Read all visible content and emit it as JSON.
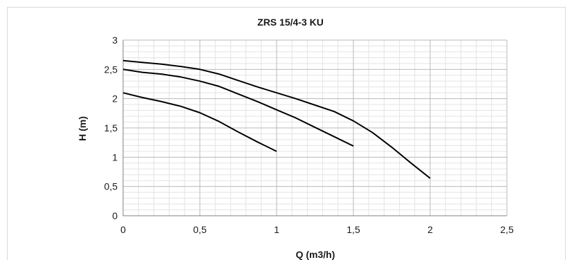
{
  "chart_data": {
    "type": "line",
    "title": "ZRS 15/4-3 KU",
    "xlabel": "Q (m3/h)",
    "ylabel": "H (m)",
    "xlim": [
      0,
      2.5
    ],
    "ylim": [
      0,
      3
    ],
    "xticks": [
      "0",
      "0,5",
      "1",
      "1,5",
      "2",
      "2,5"
    ],
    "yticks": [
      "0",
      "0,5",
      "1",
      "1,5",
      "2",
      "2,5",
      "3"
    ],
    "grid": true,
    "line_color": "#000000",
    "series": [
      {
        "x": [
          0,
          0.125,
          0.25,
          0.375,
          0.5,
          0.625,
          0.75,
          0.875,
          1.0
        ],
        "y": [
          2.1,
          2.02,
          1.95,
          1.87,
          1.76,
          1.61,
          1.43,
          1.26,
          1.1
        ]
      },
      {
        "x": [
          0,
          0.125,
          0.25,
          0.375,
          0.5,
          0.625,
          0.75,
          0.875,
          1.0,
          1.125,
          1.25,
          1.375,
          1.5
        ],
        "y": [
          2.5,
          2.45,
          2.42,
          2.37,
          2.3,
          2.21,
          2.08,
          1.95,
          1.81,
          1.67,
          1.51,
          1.35,
          1.19
        ]
      },
      {
        "x": [
          0,
          0.125,
          0.25,
          0.375,
          0.5,
          0.625,
          0.75,
          0.875,
          1.0,
          1.125,
          1.25,
          1.375,
          1.5,
          1.625,
          1.75,
          1.875,
          2.0
        ],
        "y": [
          2.65,
          2.62,
          2.59,
          2.55,
          2.5,
          2.42,
          2.31,
          2.2,
          2.1,
          2.0,
          1.89,
          1.78,
          1.62,
          1.42,
          1.17,
          0.9,
          0.64
        ]
      }
    ]
  }
}
